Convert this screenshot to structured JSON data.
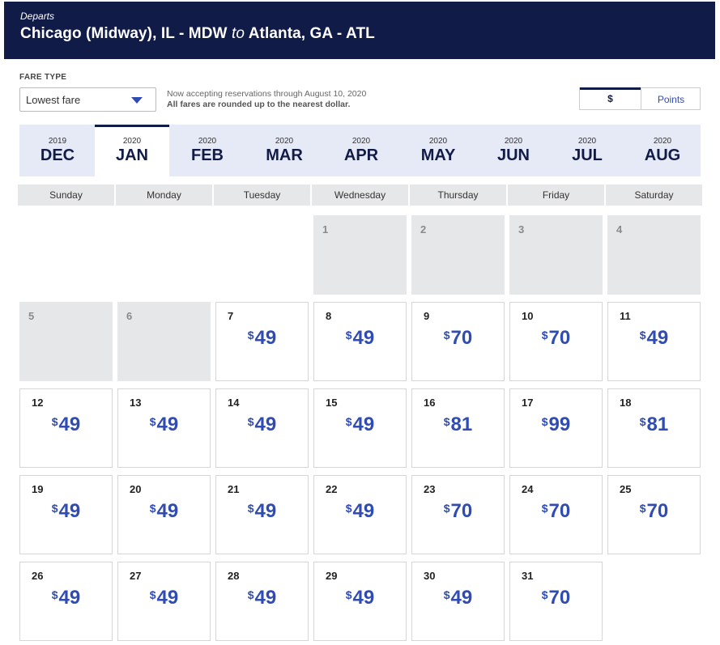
{
  "header": {
    "departs_label": "Departs",
    "origin": "Chicago (Midway), IL - MDW",
    "to_word": "to",
    "destination": "Atlanta, GA - ATL"
  },
  "fare": {
    "label": "FARE TYPE",
    "selected": "Lowest fare"
  },
  "notice": {
    "line1": "Now accepting reservations through August 10, 2020",
    "line2": "All fares are rounded up to the nearest dollar."
  },
  "currency_toggle": {
    "dollar_label": "$",
    "points_label": "Points",
    "selected": "$"
  },
  "months": [
    {
      "year": "2019",
      "month": "DEC"
    },
    {
      "year": "2020",
      "month": "JAN",
      "active": true
    },
    {
      "year": "2020",
      "month": "FEB"
    },
    {
      "year": "2020",
      "month": "MAR"
    },
    {
      "year": "2020",
      "month": "APR"
    },
    {
      "year": "2020",
      "month": "MAY"
    },
    {
      "year": "2020",
      "month": "JUN"
    },
    {
      "year": "2020",
      "month": "JUL"
    },
    {
      "year": "2020",
      "month": "AUG"
    }
  ],
  "weekdays": [
    "Sunday",
    "Monday",
    "Tuesday",
    "Wednesday",
    "Thursday",
    "Friday",
    "Saturday"
  ],
  "currency_symbol": "$",
  "days": [
    {
      "day": "1",
      "price": null
    },
    {
      "day": "2",
      "price": null
    },
    {
      "day": "3",
      "price": null
    },
    {
      "day": "4",
      "price": null
    },
    {
      "day": "5",
      "price": null
    },
    {
      "day": "6",
      "price": null
    },
    {
      "day": "7",
      "price": "49"
    },
    {
      "day": "8",
      "price": "49"
    },
    {
      "day": "9",
      "price": "70"
    },
    {
      "day": "10",
      "price": "70"
    },
    {
      "day": "11",
      "price": "49"
    },
    {
      "day": "12",
      "price": "49"
    },
    {
      "day": "13",
      "price": "49"
    },
    {
      "day": "14",
      "price": "49"
    },
    {
      "day": "15",
      "price": "49"
    },
    {
      "day": "16",
      "price": "81"
    },
    {
      "day": "17",
      "price": "99"
    },
    {
      "day": "18",
      "price": "81"
    },
    {
      "day": "19",
      "price": "49"
    },
    {
      "day": "20",
      "price": "49"
    },
    {
      "day": "21",
      "price": "49"
    },
    {
      "day": "22",
      "price": "49"
    },
    {
      "day": "23",
      "price": "70"
    },
    {
      "day": "24",
      "price": "70"
    },
    {
      "day": "25",
      "price": "70"
    },
    {
      "day": "26",
      "price": "49"
    },
    {
      "day": "27",
      "price": "49"
    },
    {
      "day": "28",
      "price": "49"
    },
    {
      "day": "29",
      "price": "49"
    },
    {
      "day": "30",
      "price": "49"
    },
    {
      "day": "31",
      "price": "70"
    }
  ],
  "colors": {
    "header_bg": "#111b47",
    "price_blue": "#304cb2",
    "month_strip_bg": "#e6eaf7",
    "past_cell_bg": "#e6e7e8"
  }
}
